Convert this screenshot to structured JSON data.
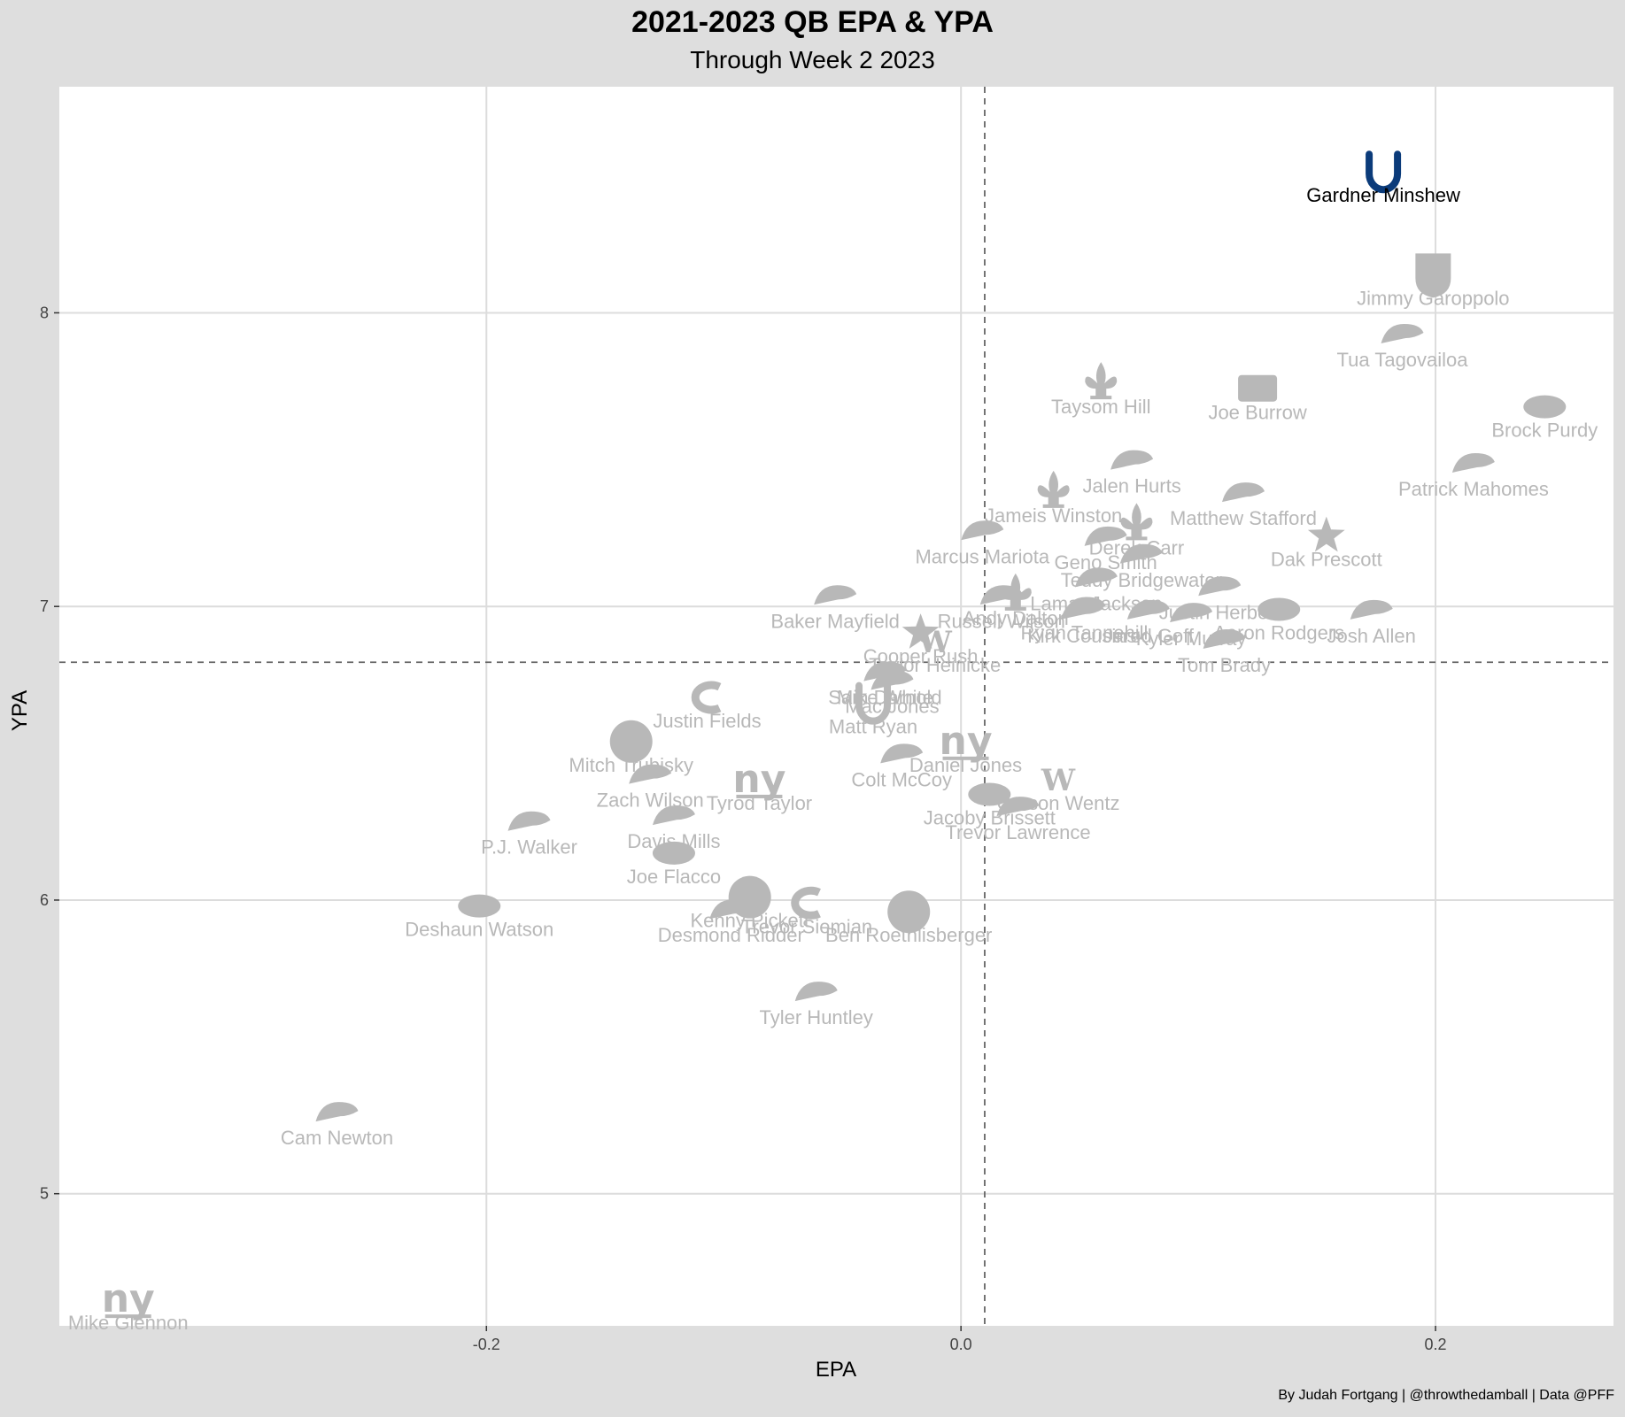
{
  "caption": "By Judah Fortgang | @throwthedamball | Data @PFF",
  "colors": {
    "background": "#dedede",
    "panel": "#ffffff",
    "grid": "#dcdcdc",
    "muted": "#b8b8b8",
    "highlight": "#0b3b7a",
    "reference_line": "#666666"
  },
  "chart_data": {
    "type": "scatter",
    "title": "2021-2023 QB EPA & YPA",
    "subtitle": "Through Week 2 2023",
    "xlabel": "EPA",
    "ylabel": "YPA",
    "xlim": [
      -0.38,
      0.275
    ],
    "ylim": [
      4.55,
      8.77
    ],
    "xticks": [
      -0.2,
      0.0,
      0.2
    ],
    "xtick_labels": [
      "-0.2",
      "0.0",
      "0.2"
    ],
    "yticks": [
      5,
      6,
      7,
      8
    ],
    "ytick_labels": [
      "5",
      "6",
      "7",
      "8"
    ],
    "grid": true,
    "reference_lines": {
      "x": 0.01,
      "y": 6.81
    },
    "point_style": "team logos",
    "points": [
      {
        "name": "Gardner Minshew",
        "x": 0.178,
        "y": 8.48,
        "icon": "colts-horseshoe-icon",
        "highlight": true
      },
      {
        "name": "Jimmy Garoppolo",
        "x": 0.199,
        "y": 8.13,
        "icon": "raiders-shield-icon"
      },
      {
        "name": "Tua Tagovailoa",
        "x": 0.186,
        "y": 7.92,
        "icon": "dolphins-icon"
      },
      {
        "name": "Joe Burrow",
        "x": 0.125,
        "y": 7.74,
        "icon": "bengals-icon"
      },
      {
        "name": "Taysom Hill",
        "x": 0.059,
        "y": 7.76,
        "icon": "saints-fleur-icon"
      },
      {
        "name": "Brock Purdy",
        "x": 0.246,
        "y": 7.68,
        "icon": "49ers-icon"
      },
      {
        "name": "Patrick Mahomes",
        "x": 0.216,
        "y": 7.48,
        "icon": "chiefs-icon"
      },
      {
        "name": "Jalen Hurts",
        "x": 0.072,
        "y": 7.49,
        "icon": "eagles-icon"
      },
      {
        "name": "Matthew Stafford",
        "x": 0.119,
        "y": 7.38,
        "icon": "rams-icon"
      },
      {
        "name": "Jameis Winston",
        "x": 0.039,
        "y": 7.39,
        "icon": "saints-fleur-icon"
      },
      {
        "name": "Derek Carr",
        "x": 0.074,
        "y": 7.28,
        "icon": "saints-fleur-icon"
      },
      {
        "name": "Dak Prescott",
        "x": 0.154,
        "y": 7.24,
        "icon": "cowboys-star-icon"
      },
      {
        "name": "Marcus Mariota",
        "x": 0.009,
        "y": 7.25,
        "icon": "falcons-icon"
      },
      {
        "name": "Geno Smith",
        "x": 0.061,
        "y": 7.23,
        "icon": "seahawks-icon"
      },
      {
        "name": "Lamar Jackson",
        "x": 0.057,
        "y": 7.09,
        "icon": "ravens-icon"
      },
      {
        "name": "Teddy Bridgewater",
        "x": 0.076,
        "y": 7.17,
        "icon": "broncos-icon"
      },
      {
        "name": "Andy Dalton",
        "x": 0.023,
        "y": 7.04,
        "icon": "saints-fleur-icon"
      },
      {
        "name": "Russell Wilson",
        "x": 0.017,
        "y": 7.03,
        "icon": "broncos-icon"
      },
      {
        "name": "Baker Mayfield",
        "x": -0.053,
        "y": 7.03,
        "icon": "buccaneers-icon"
      },
      {
        "name": "Justin Herbert",
        "x": 0.109,
        "y": 7.06,
        "icon": "chargers-icon"
      },
      {
        "name": "Jared Goff",
        "x": 0.079,
        "y": 6.98,
        "icon": "lions-icon"
      },
      {
        "name": "Josh Allen",
        "x": 0.173,
        "y": 6.98,
        "icon": "bills-icon"
      },
      {
        "name": "Aaron Rodgers",
        "x": 0.134,
        "y": 6.99,
        "icon": "packers-icon"
      },
      {
        "name": "Kyler Murray",
        "x": 0.097,
        "y": 6.97,
        "icon": "cardinals-icon"
      },
      {
        "name": "Ryan Tannehill",
        "x": 0.052,
        "y": 6.99,
        "icon": "titans-icon"
      },
      {
        "name": "Kirk Cousins",
        "x": 0.051,
        "y": 6.98,
        "icon": "vikings-icon"
      },
      {
        "name": "Tom Brady",
        "x": 0.111,
        "y": 6.88,
        "icon": "buccaneers-icon"
      },
      {
        "name": "Cooper Rush",
        "x": -0.017,
        "y": 6.91,
        "icon": "cowboys-star-icon"
      },
      {
        "name": "Taylor Heinicke",
        "x": -0.011,
        "y": 6.88,
        "icon": "commanders-icon"
      },
      {
        "name": "Sam Darnold",
        "x": -0.032,
        "y": 6.77,
        "icon": "panthers-icon"
      },
      {
        "name": "Mike White",
        "x": -0.032,
        "y": 6.77,
        "icon": "jets-icon"
      },
      {
        "name": "Mac Jones",
        "x": -0.029,
        "y": 6.74,
        "icon": "patriots-icon"
      },
      {
        "name": "Matt Ryan",
        "x": -0.037,
        "y": 6.67,
        "icon": "colts-horseshoe-icon"
      },
      {
        "name": "Justin Fields",
        "x": -0.107,
        "y": 6.69,
        "icon": "bears-icon"
      },
      {
        "name": "Mitch Trubisky",
        "x": -0.139,
        "y": 6.54,
        "icon": "steelers-icon"
      },
      {
        "name": "Daniel Jones",
        "x": 0.002,
        "y": 6.54,
        "icon": "giants-ny-icon"
      },
      {
        "name": "Colt McCoy",
        "x": -0.025,
        "y": 6.49,
        "icon": "cardinals-icon"
      },
      {
        "name": "Carson Wentz",
        "x": 0.041,
        "y": 6.41,
        "icon": "commanders-icon"
      },
      {
        "name": "Zach Wilson",
        "x": -0.131,
        "y": 6.42,
        "icon": "jets-icon"
      },
      {
        "name": "Tyrod Taylor",
        "x": -0.085,
        "y": 6.41,
        "icon": "giants-ny-icon"
      },
      {
        "name": "Jacoby Brissett",
        "x": 0.012,
        "y": 6.36,
        "icon": "browns-icon"
      },
      {
        "name": "Trevor Lawrence",
        "x": 0.024,
        "y": 6.31,
        "icon": "jaguars-icon"
      },
      {
        "name": "Davis Mills",
        "x": -0.121,
        "y": 6.28,
        "icon": "texans-icon"
      },
      {
        "name": "P.J. Walker",
        "x": -0.182,
        "y": 6.26,
        "icon": "panthers-icon"
      },
      {
        "name": "Joe Flacco",
        "x": -0.121,
        "y": 6.16,
        "icon": "browns-icon"
      },
      {
        "name": "Deshaun Watson",
        "x": -0.203,
        "y": 5.98,
        "icon": "browns-icon"
      },
      {
        "name": "Kenny Pickett",
        "x": -0.089,
        "y": 6.01,
        "icon": "steelers-icon"
      },
      {
        "name": "Desmond Ridder",
        "x": -0.097,
        "y": 5.96,
        "icon": "falcons-icon"
      },
      {
        "name": "Trevor Siemian",
        "x": -0.065,
        "y": 5.99,
        "icon": "bears-icon"
      },
      {
        "name": "Ben Roethlisberger",
        "x": -0.022,
        "y": 5.96,
        "icon": "steelers-icon"
      },
      {
        "name": "Tyler Huntley",
        "x": -0.061,
        "y": 5.68,
        "icon": "ravens-icon"
      },
      {
        "name": "Cam Newton",
        "x": -0.263,
        "y": 5.27,
        "icon": "panthers-icon"
      },
      {
        "name": "Mike Glennon",
        "x": -0.351,
        "y": 4.64,
        "icon": "giants-ny-icon"
      }
    ]
  }
}
